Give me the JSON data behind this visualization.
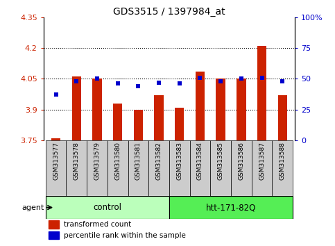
{
  "title": "GDS3515 / 1397984_at",
  "samples": [
    "GSM313577",
    "GSM313578",
    "GSM313579",
    "GSM313580",
    "GSM313581",
    "GSM313582",
    "GSM313583",
    "GSM313584",
    "GSM313585",
    "GSM313586",
    "GSM313587",
    "GSM313588"
  ],
  "bar_values": [
    3.76,
    4.06,
    4.05,
    3.93,
    3.9,
    3.97,
    3.91,
    4.085,
    4.05,
    4.05,
    4.21,
    3.97
  ],
  "dot_values": [
    37,
    48,
    50,
    46,
    44,
    47,
    46,
    51,
    48,
    50,
    51,
    48
  ],
  "ylim_left": [
    3.75,
    4.35
  ],
  "ylim_right": [
    0,
    100
  ],
  "yticks_left": [
    3.75,
    3.9,
    4.05,
    4.2,
    4.35
  ],
  "yticks_right": [
    0,
    25,
    50,
    75,
    100
  ],
  "ytick_labels_left": [
    "3.75",
    "3.9",
    "4.05",
    "4.2",
    "4.35"
  ],
  "ytick_labels_right": [
    "0",
    "25",
    "50",
    "75",
    "100%"
  ],
  "hgrid_values": [
    3.9,
    4.05,
    4.2
  ],
  "bar_color": "#cc2200",
  "dot_color": "#0000cc",
  "group1_label": "control",
  "group2_label": "htt-171-82Q",
  "group1_indices": [
    0,
    1,
    2,
    3,
    4,
    5
  ],
  "group2_indices": [
    6,
    7,
    8,
    9,
    10,
    11
  ],
  "group1_color": "#bbffbb",
  "group2_color": "#55ee55",
  "agent_label": "agent",
  "legend_bar_label": "transformed count",
  "legend_dot_label": "percentile rank within the sample",
  "left_tick_color": "#cc2200",
  "right_tick_color": "#0000cc",
  "bar_bottom": 3.75,
  "tick_label_fontsize": 7.5,
  "title_fontsize": 10,
  "sample_box_color": "#cccccc",
  "bar_width": 0.45
}
